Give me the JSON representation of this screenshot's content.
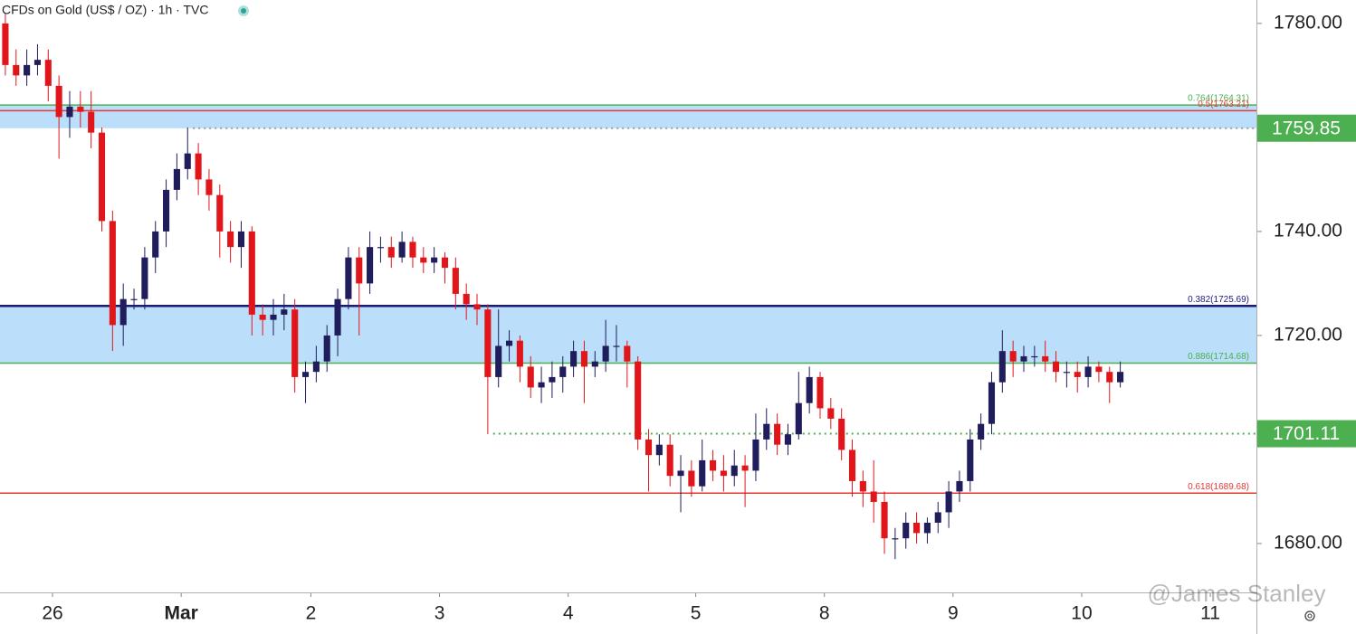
{
  "chart_data": {
    "type": "candlestick",
    "title": "CFDs on Gold (US$ / OZ) · 1h · TVC",
    "watermark": "@James Stanley",
    "up_color": "#1f1d5c",
    "down_color": "#e0161b",
    "open": [
      1780,
      1772,
      1770,
      1772,
      1773,
      1768,
      1762,
      1764,
      1763,
      1759,
      1742,
      1722,
      1727,
      1727,
      1735,
      1740,
      1748,
      1752,
      1755,
      1750,
      1747,
      1740,
      1737,
      1740,
      1724,
      1723,
      1724,
      1725,
      1712,
      1713,
      1715,
      1720,
      1727,
      1735,
      1730,
      1737,
      1737,
      1735,
      1738,
      1735,
      1734,
      1735,
      1733,
      1728,
      1726,
      1725,
      1712,
      1718,
      1719,
      1714,
      1710,
      1711,
      1712,
      1714,
      1717,
      1714,
      1715,
      1718,
      1718,
      1715,
      1700,
      1697,
      1699,
      1693,
      1694,
      1691,
      1696,
      1694,
      1693,
      1695,
      1694,
      1700,
      1703,
      1699,
      1701,
      1707,
      1712,
      1706,
      1704,
      1698,
      1692,
      1690,
      1688,
      1681,
      1681,
      1684,
      1682,
      1684,
      1686,
      1690,
      1692,
      1700,
      1703,
      1711,
      1717,
      1715,
      1716,
      1716,
      1715,
      1713,
      1713,
      1712,
      1714,
      1713,
      1711
    ],
    "high": [
      1782,
      1775,
      1775,
      1776,
      1775,
      1770,
      1767,
      1767,
      1767,
      1760,
      1744,
      1730,
      1729,
      1737,
      1742,
      1750,
      1755,
      1760,
      1757,
      1752,
      1749,
      1742,
      1742,
      1741,
      1726,
      1727,
      1728,
      1727,
      1715,
      1718,
      1722,
      1729,
      1737,
      1737,
      1740,
      1739,
      1739,
      1740,
      1739,
      1737,
      1737,
      1736,
      1735,
      1730,
      1728,
      1726,
      1725,
      1721,
      1720,
      1716,
      1714,
      1715,
      1716,
      1719,
      1719,
      1717,
      1723,
      1722,
      1719,
      1716,
      1702,
      1701,
      1701,
      1697,
      1696,
      1700,
      1698,
      1697,
      1698,
      1697,
      1705,
      1706,
      1705,
      1703,
      1713,
      1714,
      1713,
      1708,
      1706,
      1700,
      1694,
      1696,
      1690,
      1683,
      1686,
      1686,
      1685,
      1688,
      1692,
      1694,
      1702,
      1705,
      1713,
      1721,
      1719,
      1718,
      1718,
      1719,
      1717,
      1715,
      1715,
      1716,
      1715,
      1714,
      1715
    ],
    "low": [
      1770,
      1768,
      1768,
      1770,
      1765,
      1754,
      1758,
      1760,
      1756,
      1740,
      1717,
      1718,
      1725,
      1725,
      1732,
      1737,
      1746,
      1750,
      1747,
      1744,
      1735,
      1734,
      1733,
      1720,
      1720,
      1720,
      1721,
      1709,
      1707,
      1711,
      1713,
      1716,
      1725,
      1720,
      1728,
      1734,
      1733,
      1734,
      1733,
      1732,
      1732,
      1730,
      1725,
      1723,
      1722,
      1701,
      1710,
      1715,
      1711,
      1708,
      1707,
      1708,
      1709,
      1712,
      1707,
      1712,
      1713,
      1715,
      1710,
      1698,
      1690,
      1695,
      1691,
      1686,
      1689,
      1690,
      1692,
      1690,
      1691,
      1687,
      1692,
      1698,
      1697,
      1697,
      1700,
      1705,
      1704,
      1702,
      1696,
      1689,
      1687,
      1684,
      1678,
      1677,
      1679,
      1680,
      1680,
      1682,
      1683,
      1688,
      1690,
      1698,
      1701,
      1709,
      1712,
      1713,
      1714,
      1713,
      1711,
      1710,
      1709,
      1710,
      1711,
      1707,
      1710
    ],
    "close": [
      1772,
      1770,
      1772,
      1773,
      1768,
      1762,
      1764,
      1763,
      1759,
      1742,
      1722,
      1727,
      1727,
      1735,
      1740,
      1748,
      1752,
      1755,
      1750,
      1747,
      1740,
      1737,
      1740,
      1724,
      1723,
      1724,
      1725,
      1712,
      1713,
      1715,
      1720,
      1727,
      1735,
      1730,
      1737,
      1737,
      1735,
      1738,
      1735,
      1734,
      1735,
      1733,
      1728,
      1726,
      1725,
      1712,
      1718,
      1719,
      1714,
      1710,
      1711,
      1712,
      1714,
      1717,
      1714,
      1715,
      1718,
      1718,
      1715,
      1700,
      1697,
      1699,
      1693,
      1694,
      1691,
      1696,
      1694,
      1693,
      1695,
      1694,
      1700,
      1703,
      1699,
      1701,
      1707,
      1712,
      1706,
      1704,
      1698,
      1692,
      1690,
      1688,
      1681,
      1681,
      1684,
      1682,
      1684,
      1686,
      1690,
      1692,
      1700,
      1703,
      1711,
      1717,
      1715,
      1716,
      1716,
      1715,
      1713,
      1713,
      1712,
      1714,
      1713,
      1711,
      1713
    ],
    "xlim": [
      -0.5,
      116.7
    ],
    "xticks": [
      {
        "value": 4.4,
        "label": "26"
      },
      {
        "value": 16.4,
        "label": "Mar"
      },
      {
        "value": 28.5,
        "label": "2"
      },
      {
        "value": 40.5,
        "label": "3"
      },
      {
        "value": 52.5,
        "label": "4"
      },
      {
        "value": 64.4,
        "label": "5"
      },
      {
        "value": 76.4,
        "label": "8"
      },
      {
        "value": 88.4,
        "label": "9"
      },
      {
        "value": 100.4,
        "label": "10"
      },
      {
        "value": 112.4,
        "label": "11"
      }
    ],
    "ylim": [
      1670.6,
      1784.5
    ],
    "yticks": [
      {
        "value": 1780,
        "label": "1780.00"
      },
      {
        "value": 1740,
        "label": "1740.00"
      },
      {
        "value": 1720,
        "label": "1720.00"
      },
      {
        "value": 1680,
        "label": "1680.00"
      }
    ],
    "zone_color": "#bbdefb",
    "zones": [
      {
        "from": 1759.85,
        "to": 1764.31
      },
      {
        "from": 1714.68,
        "to": 1725.69
      }
    ],
    "levels": [
      {
        "label": "0.764(1764.31)",
        "value": 1764.31,
        "color": "#4caf50"
      },
      {
        "label": "0.5(1763.21)",
        "value": 1763.21,
        "color": "#e53935"
      },
      {
        "label": "0.382(1725.69)",
        "value": 1725.69,
        "color": "#1a1a7e"
      },
      {
        "label": "0.886(1714.68)",
        "value": 1714.68,
        "color": "#4caf50"
      },
      {
        "label": "0.618(1689.68)",
        "value": 1689.68,
        "color": "#e53935"
      }
    ],
    "price_lines": [
      {
        "value": 1759.85,
        "x_start": 17.5,
        "line_color": "#9e9e9e",
        "box_color": "#4caf50"
      },
      {
        "value": 1701.11,
        "x_start": 45.5,
        "line_color": "#4caf50",
        "box_color": "#4caf50"
      }
    ]
  }
}
